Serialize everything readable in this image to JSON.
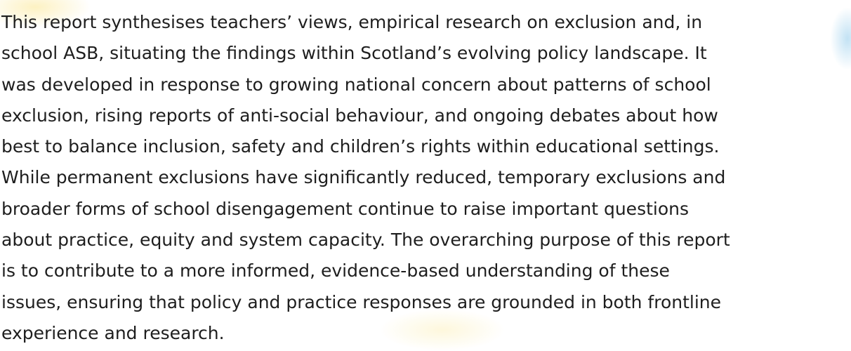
{
  "paragraph": {
    "lines": [
      "This report synthesises teachers’ views, empirical research on exclusion and, in",
      "school ASB, situating the findings within Scotland’s evolving policy landscape. It",
      "was developed in response to growing national concern about patterns of school",
      "exclusion, rising reports of anti-social behaviour, and ongoing debates about how",
      "best to balance inclusion, safety and children’s rights within educational settings.",
      "While permanent exclusions have significantly reduced, temporary exclusions and",
      "broader forms of school disengagement continue to raise important questions",
      "about practice, equity and system capacity. The overarching purpose of this report",
      "is to contribute to a more informed, evidence-based understanding of these",
      "issues, ensuring that policy and practice responses are grounded in both frontline",
      "experience and research."
    ]
  }
}
